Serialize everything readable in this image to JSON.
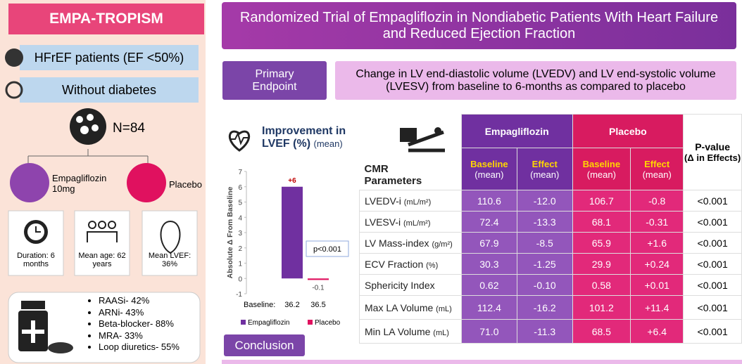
{
  "left": {
    "title": "EMPA-TROPISM",
    "criteria": [
      "HFrEF patients (EF <50%)",
      "Without diabetes"
    ],
    "total": "N=84",
    "arms": [
      "Empagliflozin 10mg",
      "Placebo"
    ],
    "stats": [
      "Duration: 6 months",
      "Mean age: 62 years",
      "Mean LVEF: 36%"
    ],
    "medications": [
      "RAASi- 42%",
      "ARNi- 43%",
      "Beta-blocker- 88%",
      "MRA- 33%",
      "Loop diuretics- 55%"
    ]
  },
  "header": {
    "title": "Randomized Trial of Empagliflozin in Nondiabetic Patients With Heart Failure and Reduced Ejection Fraction"
  },
  "endpoint": {
    "label": "Primary Endpoint",
    "text": "Change in LV end-diastolic volume (LVEDV) and LV end-systolic volume (LVESV) from baseline to 6-months as compared to placebo"
  },
  "chart_data": {
    "type": "bar",
    "title": "Improvement in LVEF (%)",
    "subtitle": "(mean)",
    "y_label": "Absolute Δ From Baseline",
    "x_label": "Baseline:",
    "categories": [
      "36.2",
      "36.5"
    ],
    "series": [
      {
        "name": "Empagliflozin",
        "color": "#7030a0",
        "values": [
          6,
          null
        ],
        "value_labels": [
          "+6",
          null
        ]
      },
      {
        "name": "Placebo",
        "color": "#e0115f",
        "values": [
          null,
          -0.1
        ]
      }
    ],
    "ylim": [
      -1,
      7
    ],
    "yticks": [
      -1,
      0,
      1,
      2,
      3,
      4,
      5,
      6,
      7
    ],
    "annotation": "p<0.001",
    "legend": "bottom"
  },
  "table": {
    "title": "CMR Parameters",
    "groups": [
      "Empagliflozin",
      "Placebo"
    ],
    "subheaders": [
      {
        "label": "Baseline",
        "note": "(mean)"
      },
      {
        "label": "Effect",
        "note": "(mean)"
      },
      {
        "label": "Baseline",
        "note": "(mean)"
      },
      {
        "label": "Effect",
        "note": "(mean)"
      }
    ],
    "pvalue_header": {
      "label": "P-value",
      "note": "(Δ in Effects)"
    },
    "rows": [
      {
        "name": "LVEDV-i",
        "unit": "(mL/m²)",
        "cells": [
          "110.6",
          "-12.0",
          "106.7",
          "-0.8",
          "<0.001"
        ]
      },
      {
        "name": "LVESV-i",
        "unit": "(mL/m²)",
        "cells": [
          "72.4",
          "-13.3",
          "68.1",
          "-0.31",
          "<0.001"
        ]
      },
      {
        "name": "LV Mass-index",
        "unit": "(g/m²)",
        "cells": [
          "67.9",
          "-8.5",
          "65.9",
          "+1.6",
          "<0.001"
        ]
      },
      {
        "name": "ECV Fraction",
        "unit": "(%)",
        "cells": [
          "30.3",
          "-1.25",
          "29.9",
          "+0.24",
          "<0.001"
        ]
      },
      {
        "name": "Sphericity Index",
        "unit": null,
        "cells": [
          "0.62",
          "-0.10",
          "0.58",
          "+0.01",
          "<0.001"
        ]
      },
      {
        "name": "Max LA Volume",
        "unit": "(mL)",
        "cells": [
          "112.4",
          "-16.2",
          "101.2",
          "+11.4",
          "<0.001"
        ]
      },
      {
        "name": "Min LA Volume",
        "unit": "(mL)",
        "cells": [
          "71.0",
          "-11.3",
          "68.5",
          "+6.4",
          "<0.001"
        ]
      }
    ]
  },
  "conclusion": {
    "label": "Conclusion"
  }
}
